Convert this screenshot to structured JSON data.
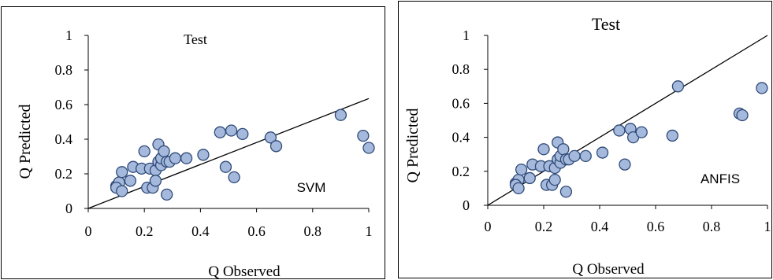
{
  "chart_data": [
    {
      "type": "scatter",
      "title": "Test",
      "annotation": "SVM",
      "xlabel": "Q  Observed",
      "ylabel": "Q  Predicted",
      "xlim": [
        0,
        1
      ],
      "ylim": [
        0,
        1
      ],
      "xticks": [
        "0",
        "0.2",
        "0.4",
        "0.6",
        "0.8",
        "1"
      ],
      "yticks": [
        "0",
        "0.2",
        "0.4",
        "0.6",
        "0.8",
        "1"
      ],
      "fit_line": {
        "x": [
          0,
          1
        ],
        "y": [
          0,
          0.635
        ]
      },
      "points": [
        [
          0.1,
          0.13
        ],
        [
          0.11,
          0.15
        ],
        [
          0.1,
          0.12
        ],
        [
          0.12,
          0.1
        ],
        [
          0.12,
          0.21
        ],
        [
          0.15,
          0.16
        ],
        [
          0.16,
          0.24
        ],
        [
          0.19,
          0.23
        ],
        [
          0.2,
          0.33
        ],
        [
          0.21,
          0.12
        ],
        [
          0.22,
          0.23
        ],
        [
          0.23,
          0.12
        ],
        [
          0.24,
          0.22
        ],
        [
          0.24,
          0.16
        ],
        [
          0.25,
          0.37
        ],
        [
          0.25,
          0.27
        ],
        [
          0.26,
          0.25
        ],
        [
          0.26,
          0.29
        ],
        [
          0.27,
          0.33
        ],
        [
          0.28,
          0.27
        ],
        [
          0.28,
          0.08
        ],
        [
          0.29,
          0.27
        ],
        [
          0.31,
          0.29
        ],
        [
          0.35,
          0.29
        ],
        [
          0.41,
          0.31
        ],
        [
          0.47,
          0.44
        ],
        [
          0.49,
          0.24
        ],
        [
          0.51,
          0.45
        ],
        [
          0.52,
          0.18
        ],
        [
          0.55,
          0.43
        ],
        [
          0.65,
          0.41
        ],
        [
          0.67,
          0.36
        ],
        [
          0.9,
          0.54
        ],
        [
          0.98,
          0.42
        ],
        [
          1.0,
          0.35
        ]
      ]
    },
    {
      "type": "scatter",
      "title": "Test",
      "annotation": "ANFIS",
      "xlabel": "Q  Observed",
      "ylabel": "Q  Predicted",
      "xlim": [
        0,
        1
      ],
      "ylim": [
        0,
        1
      ],
      "xticks": [
        "0",
        "0.2",
        "0.4",
        "0.6",
        "0.8",
        "1"
      ],
      "yticks": [
        "0",
        "0.2",
        "0.4",
        "0.6",
        "0.8",
        "1"
      ],
      "fit_line": {
        "x": [
          0,
          1
        ],
        "y": [
          0,
          1
        ]
      },
      "points": [
        [
          0.1,
          0.13
        ],
        [
          0.11,
          0.15
        ],
        [
          0.1,
          0.12
        ],
        [
          0.11,
          0.1
        ],
        [
          0.12,
          0.21
        ],
        [
          0.15,
          0.16
        ],
        [
          0.16,
          0.24
        ],
        [
          0.19,
          0.23
        ],
        [
          0.2,
          0.33
        ],
        [
          0.21,
          0.12
        ],
        [
          0.22,
          0.23
        ],
        [
          0.23,
          0.12
        ],
        [
          0.24,
          0.22
        ],
        [
          0.24,
          0.15
        ],
        [
          0.25,
          0.37
        ],
        [
          0.25,
          0.27
        ],
        [
          0.26,
          0.25
        ],
        [
          0.26,
          0.29
        ],
        [
          0.27,
          0.33
        ],
        [
          0.28,
          0.27
        ],
        [
          0.28,
          0.08
        ],
        [
          0.29,
          0.27
        ],
        [
          0.31,
          0.29
        ],
        [
          0.35,
          0.29
        ],
        [
          0.41,
          0.31
        ],
        [
          0.47,
          0.44
        ],
        [
          0.49,
          0.24
        ],
        [
          0.51,
          0.45
        ],
        [
          0.52,
          0.4
        ],
        [
          0.55,
          0.43
        ],
        [
          0.66,
          0.41
        ],
        [
          0.68,
          0.7
        ],
        [
          0.9,
          0.54
        ],
        [
          0.91,
          0.53
        ],
        [
          0.98,
          0.69
        ]
      ]
    }
  ]
}
